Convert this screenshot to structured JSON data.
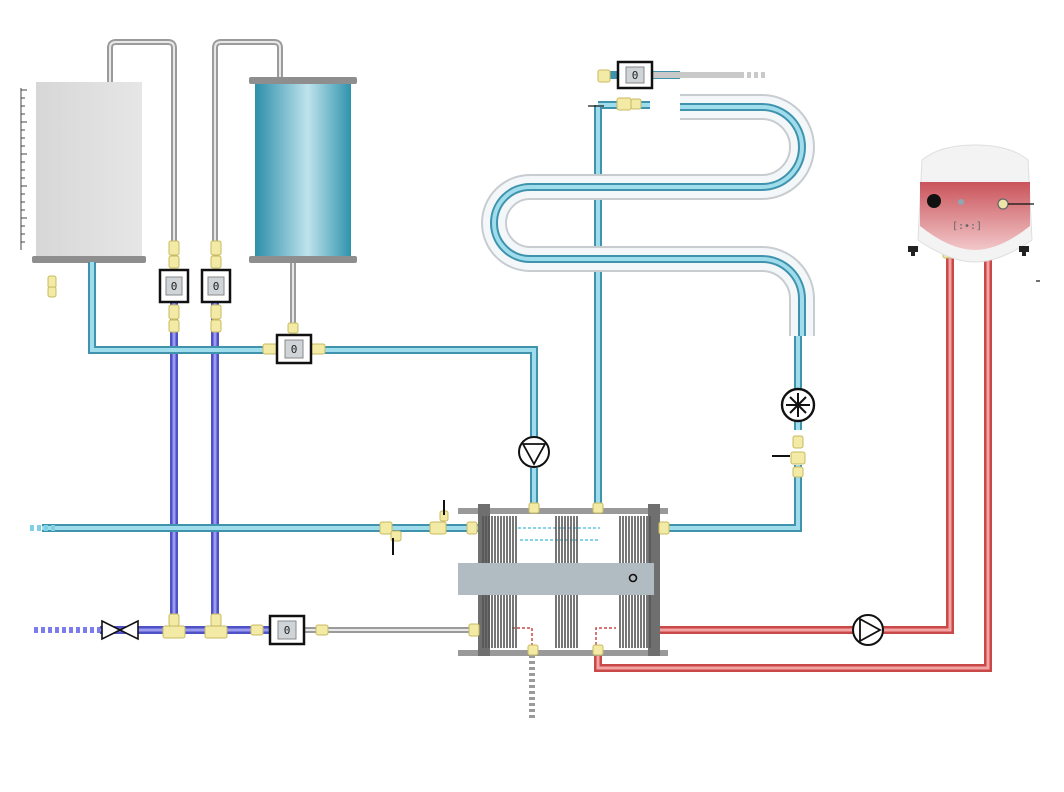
{
  "meters": {
    "top_right": "0",
    "storage_left_supply": "0",
    "storage_left_return": "0",
    "storage_bottom": "0",
    "cold_inlet": "0"
  },
  "controller_display": "[:•:]",
  "colors": {
    "cold_water": "#7fd0e3",
    "cold_water_edge": "#3f93ad",
    "mains_water": "#6c6ee8",
    "hot_loop": "#e36b6b",
    "grey_pipe": "#bdbdbd",
    "fitting": "#f3eaa6",
    "fitting_edge": "#c7bb62",
    "tank_grey": "#dcdcdc",
    "tank_blue": "#3fa2bd",
    "exchanger_frame": "#777777",
    "exchanger_bar": "#b1bcc2"
  },
  "icons": [
    "valve-icon",
    "pump-icon",
    "fan-icon",
    "sensor-icon"
  ]
}
